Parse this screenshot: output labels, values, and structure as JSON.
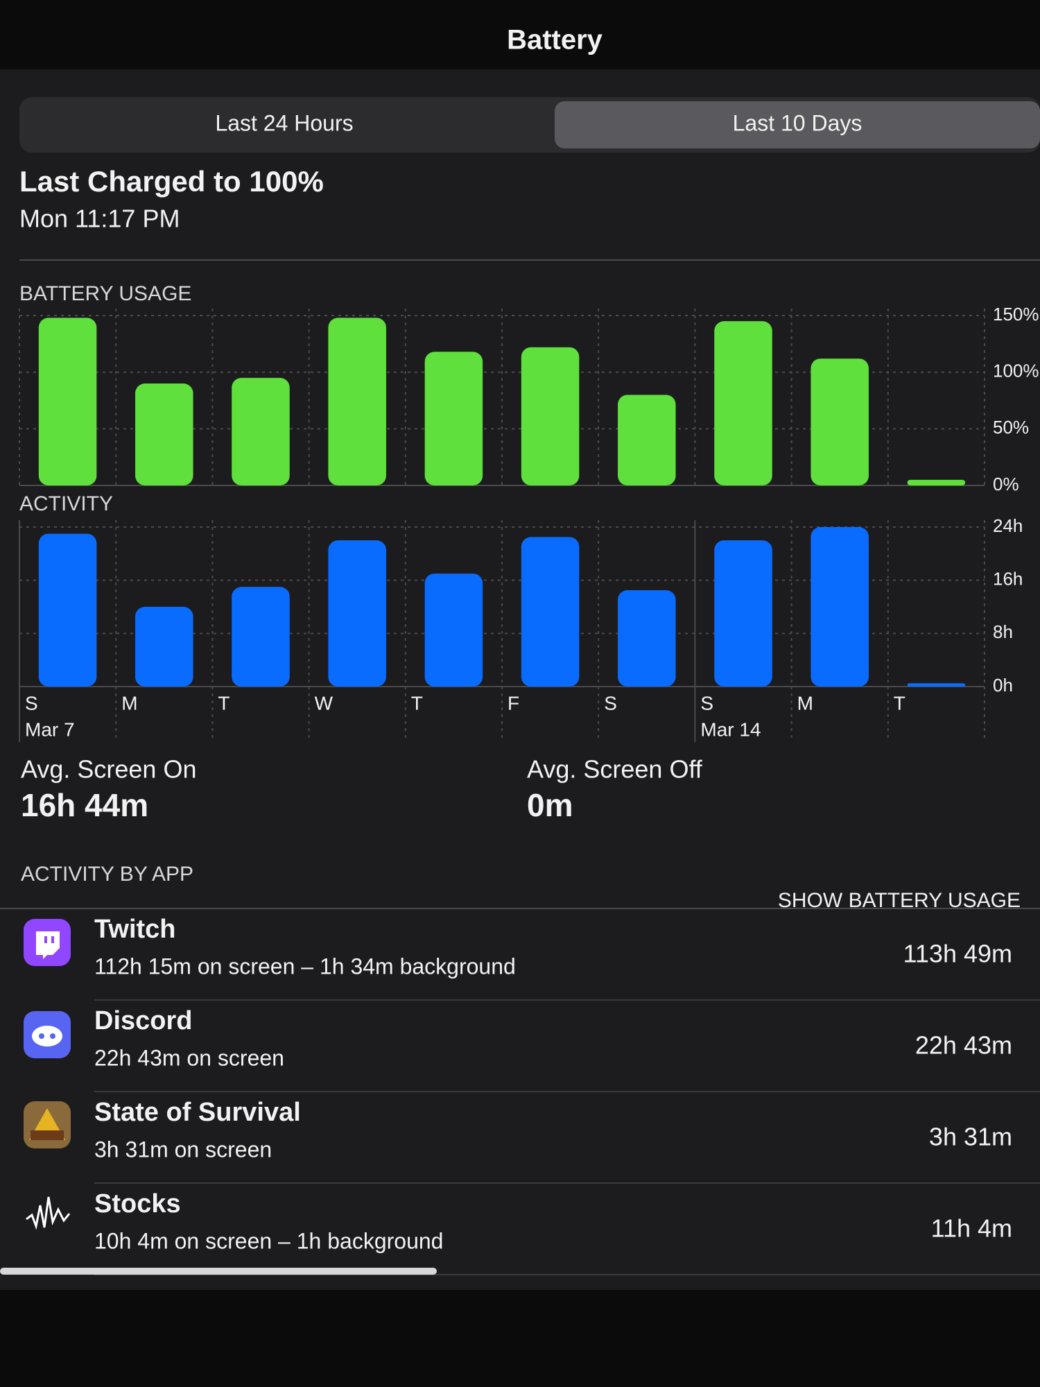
{
  "header": {
    "title": "Battery"
  },
  "segments": [
    "Last 24 Hours",
    "Last 10 Days"
  ],
  "last_charged": {
    "title": "Last Charged to 100%",
    "time": "Mon 11:17 PM"
  },
  "chart_data": [
    {
      "type": "bar",
      "title": "BATTERY USAGE",
      "color": "#5fe03c",
      "grid": true,
      "values": [
        148,
        90,
        95,
        148,
        118,
        122,
        80,
        145,
        112,
        5
      ],
      "ylim": [
        0,
        150
      ],
      "yticks": [
        {
          "value": 0,
          "label": "0%"
        },
        {
          "value": 50,
          "label": "50%"
        },
        {
          "value": 100,
          "label": "100%"
        },
        {
          "value": 150,
          "label": "150%"
        }
      ]
    },
    {
      "type": "bar",
      "title": "ACTIVITY",
      "color": "#0a6cff",
      "grid": true,
      "categories": [
        "S",
        "M",
        "T",
        "W",
        "T",
        "F",
        "S",
        "S",
        "M",
        "T"
      ],
      "date_labels": [
        "Mar 7",
        null,
        null,
        null,
        null,
        null,
        null,
        "Mar 14",
        null,
        null
      ],
      "values": [
        23,
        12,
        15,
        22,
        17,
        22.5,
        14.5,
        22,
        24,
        0.5
      ],
      "ylim": [
        0,
        24
      ],
      "yticks": [
        {
          "value": 0,
          "label": "0h"
        },
        {
          "value": 8,
          "label": "8h"
        },
        {
          "value": 16,
          "label": "16h"
        },
        {
          "value": 24,
          "label": "24h"
        }
      ]
    }
  ],
  "averages": [
    {
      "label": "Avg. Screen On",
      "value": "16h 44m"
    },
    {
      "label": "Avg. Screen Off",
      "value": "0m"
    }
  ],
  "apps_section": {
    "title": "ACTIVITY BY APP",
    "action": "SHOW BATTERY USAGE"
  },
  "apps": [
    {
      "name": "Twitch",
      "detail": "112h 15m on screen – 1h 34m background",
      "total": "113h 49m"
    },
    {
      "name": "Discord",
      "detail": "22h 43m on screen",
      "total": "22h 43m"
    },
    {
      "name": "State of Survival",
      "detail": "3h 31m on screen",
      "total": "3h 31m"
    },
    {
      "name": "Stocks",
      "detail": "10h 4m on screen – 1h background",
      "total": "11h 4m"
    }
  ]
}
